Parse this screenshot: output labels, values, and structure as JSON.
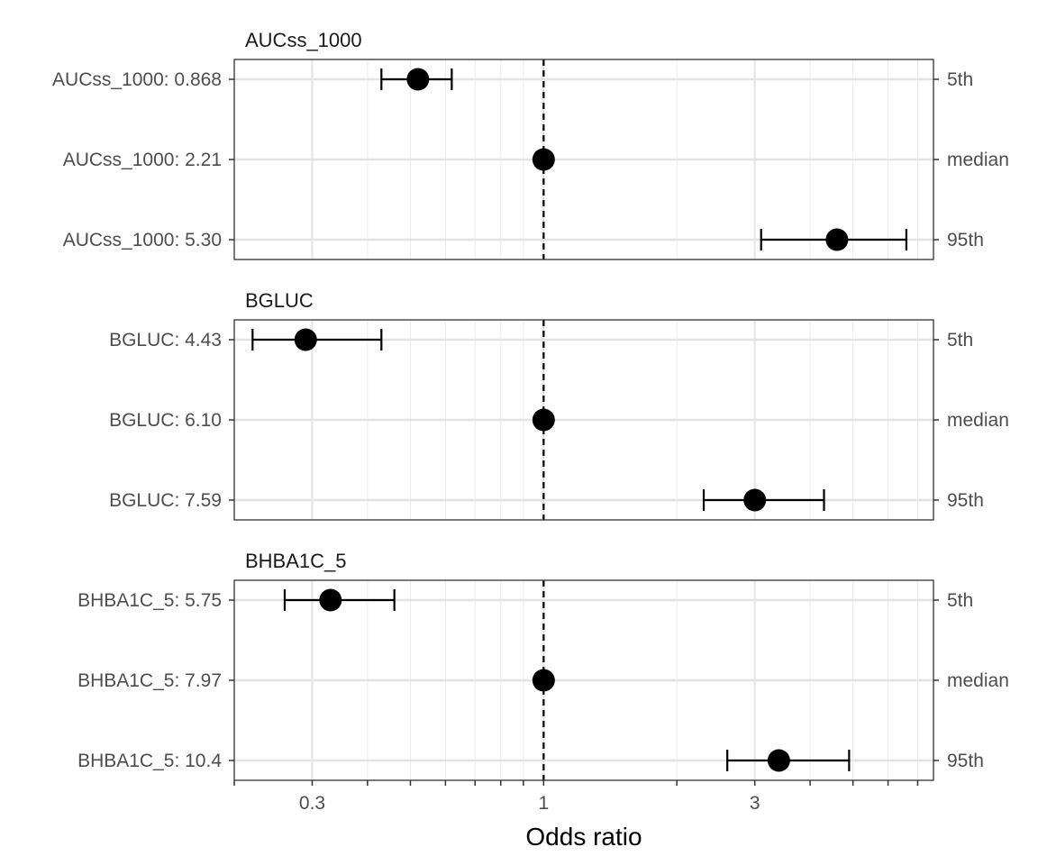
{
  "chart_data": {
    "type": "scatter",
    "subtype": "forest-plot",
    "xlabel": "Odds ratio",
    "x_scale": "log",
    "xlim": [
      0.2,
      7.6
    ],
    "x_ticks": [
      0.3,
      1,
      3
    ],
    "x_tick_labels": [
      "0.3",
      "1",
      "3"
    ],
    "reference_line": 1,
    "grid": true,
    "point_color": "#000000",
    "panels": [
      {
        "strip": "AUCss_1000",
        "rows": [
          {
            "label": "AUCss_1000: 0.868",
            "quantile": "5th",
            "or": 0.52,
            "lower": 0.43,
            "upper": 0.62
          },
          {
            "label": "AUCss_1000: 2.21",
            "quantile": "median",
            "or": 1.0,
            "lower": 1.0,
            "upper": 1.0
          },
          {
            "label": "AUCss_1000: 5.30",
            "quantile": "95th",
            "or": 4.6,
            "lower": 3.1,
            "upper": 6.6
          }
        ]
      },
      {
        "strip": "BGLUC",
        "rows": [
          {
            "label": "BGLUC: 4.43",
            "quantile": "5th",
            "or": 0.29,
            "lower": 0.22,
            "upper": 0.43
          },
          {
            "label": "BGLUC: 6.10",
            "quantile": "median",
            "or": 1.0,
            "lower": 1.0,
            "upper": 1.0
          },
          {
            "label": "BGLUC: 7.59",
            "quantile": "95th",
            "or": 3.0,
            "lower": 2.3,
            "upper": 4.3
          }
        ]
      },
      {
        "strip": "BHBA1C_5",
        "rows": [
          {
            "label": "BHBA1C_5: 5.75",
            "quantile": "5th",
            "or": 0.33,
            "lower": 0.26,
            "upper": 0.46
          },
          {
            "label": "BHBA1C_5: 7.97",
            "quantile": "median",
            "or": 1.0,
            "lower": 1.0,
            "upper": 1.0
          },
          {
            "label": "BHBA1C_5: 10.4",
            "quantile": "95th",
            "or": 3.4,
            "lower": 2.6,
            "upper": 4.9
          }
        ]
      }
    ]
  }
}
